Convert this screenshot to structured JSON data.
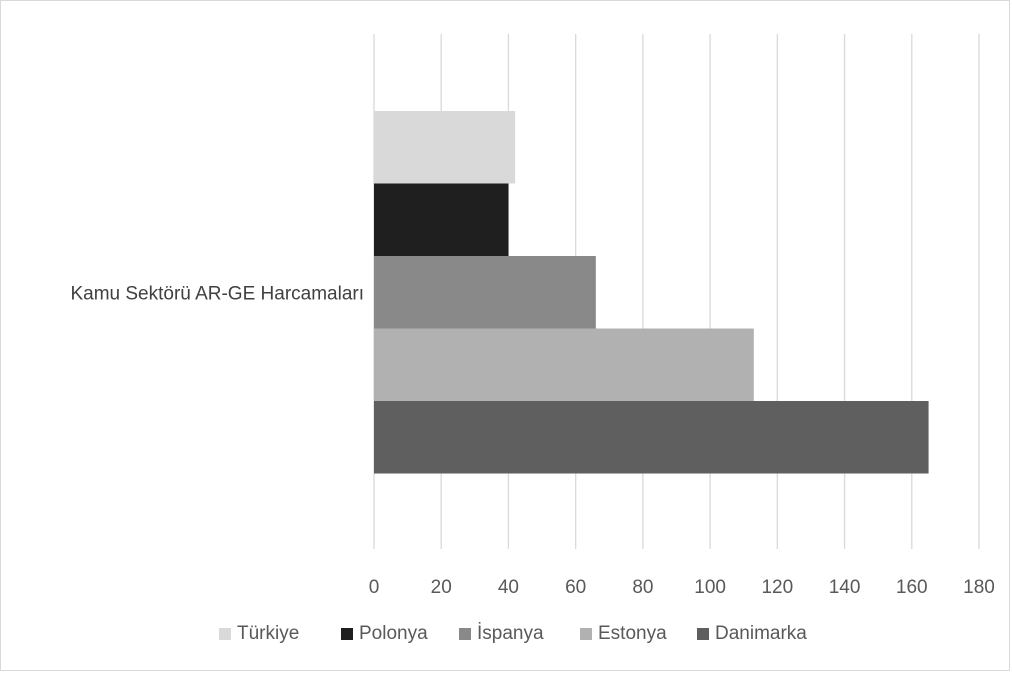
{
  "chart_data": {
    "type": "bar",
    "orientation": "horizontal",
    "categories": [
      "Kamu Sektörü AR-GE Harcamaları"
    ],
    "series": [
      {
        "name": "Türkiye",
        "values": [
          42
        ],
        "color": "#d9d9d9"
      },
      {
        "name": "Polonya",
        "values": [
          40
        ],
        "color": "#1f1f1f"
      },
      {
        "name": "İspanya",
        "values": [
          66
        ],
        "color": "#898989"
      },
      {
        "name": "Estonya",
        "values": [
          113
        ],
        "color": "#b1b1b1"
      },
      {
        "name": "Danimarka",
        "values": [
          165
        ],
        "color": "#5f5f5f"
      }
    ],
    "xlim": [
      0,
      180
    ],
    "xticks": [
      "0",
      "20",
      "40",
      "60",
      "80",
      "100",
      "120",
      "140",
      "160",
      "180"
    ],
    "grid": true,
    "legend_position": "bottom",
    "title": "",
    "xlabel": "",
    "ylabel": ""
  }
}
